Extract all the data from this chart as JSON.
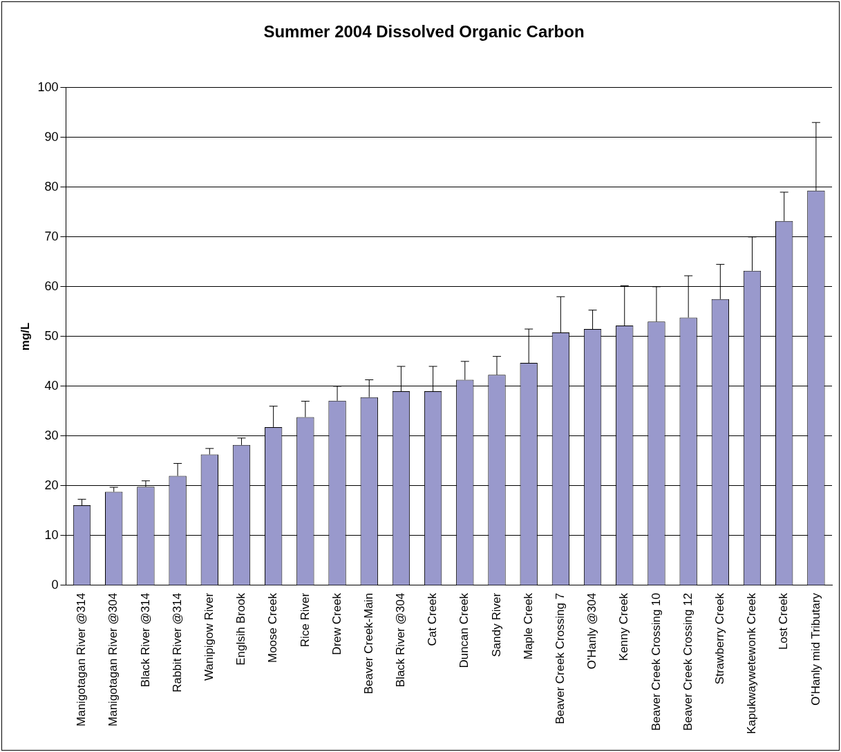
{
  "chart_data": {
    "type": "bar",
    "title": "Summer 2004 Dissolved Organic Carbon",
    "ylabel": "mg/L",
    "categories": [
      "Manigotagan River @314",
      "Manigotagan River @304",
      "Black River @314",
      "Rabbit River @314",
      "Wanipigow River",
      "Englsih Brook",
      "Moose Creek",
      "Rice River",
      "Drew Creek",
      "Beaver Creek-Main",
      "Black River @304",
      "Cat Creek",
      "Duncan Creek",
      "Sandy River",
      "Maple Creek",
      "Beaver Creek Crossing 7",
      "O'Hanly @304",
      "Kenny Creek",
      "Beaver Creek Crossing 10",
      "Beaver Creek Crossing 12",
      "Strawberry Creek",
      "Kapukwaywetewonk Creek",
      "Lost Creek",
      "O'Hanly mid Tributary"
    ],
    "values": [
      16.1,
      18.8,
      19.8,
      22,
      26.3,
      28.2,
      31.8,
      33.8,
      37.1,
      37.8,
      39,
      39,
      41.3,
      42.3,
      44.7,
      50.8,
      51.5,
      52.2,
      53,
      53.8,
      57.5,
      63.2,
      73.2,
      79.3
    ],
    "errors": [
      [
        16.1,
        17.3
      ],
      [
        18.8,
        19.7
      ],
      [
        19.8,
        21
      ],
      [
        22,
        24.5
      ],
      [
        26.3,
        27.5
      ],
      [
        28.2,
        29.6
      ],
      [
        31.8,
        36
      ],
      [
        33.8,
        37
      ],
      [
        37.1,
        40
      ],
      [
        37.8,
        41.3
      ],
      [
        39,
        44
      ],
      [
        39,
        44
      ],
      [
        41.3,
        45
      ],
      [
        42.3,
        46
      ],
      [
        44.7,
        51.5
      ],
      [
        50.8,
        58
      ],
      [
        51.5,
        55.3
      ],
      [
        52.2,
        60.2
      ],
      [
        53,
        60
      ],
      [
        53.8,
        62.2
      ],
      [
        57.5,
        64.5
      ],
      [
        63.2,
        70
      ],
      [
        73.2,
        79
      ],
      [
        79.3,
        93
      ]
    ],
    "color": "#9999cc",
    "ylim": [
      0,
      100
    ],
    "yticks": [
      0,
      10,
      20,
      30,
      40,
      50,
      60,
      70,
      80,
      90,
      100
    ],
    "grid": "y",
    "legend": false
  }
}
